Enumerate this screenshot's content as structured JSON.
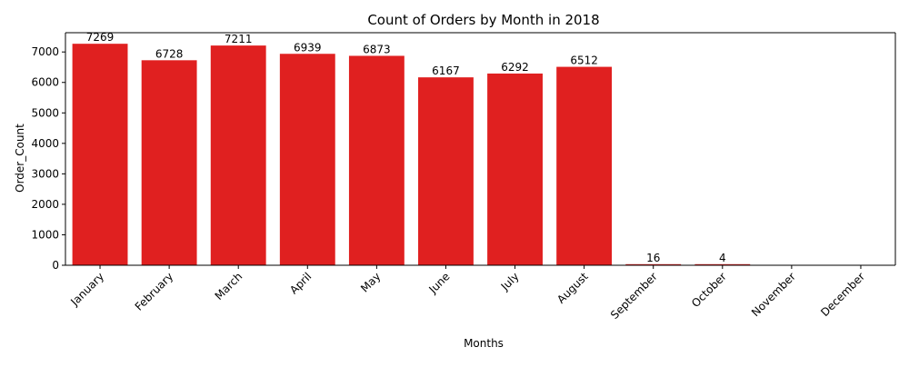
{
  "chart_data": {
    "type": "bar",
    "title": "Count of Orders by Month in 2018",
    "xlabel": "Months",
    "ylabel": "Order_Count",
    "categories": [
      "January",
      "February",
      "March",
      "April",
      "May",
      "June",
      "July",
      "August",
      "September",
      "October",
      "November",
      "December"
    ],
    "values": [
      7269,
      6728,
      7211,
      6939,
      6873,
      6167,
      6292,
      6512,
      16,
      4,
      0,
      0
    ],
    "data_labels": [
      "7269",
      "6728",
      "7211",
      "6939",
      "6873",
      "6167",
      "6292",
      "6512",
      "16",
      "4",
      "",
      ""
    ],
    "ylim": [
      0,
      7632
    ],
    "yticks": [
      0,
      1000,
      2000,
      3000,
      4000,
      5000,
      6000,
      7000
    ],
    "bar_color": "#e02020",
    "grid": false,
    "legend": false
  }
}
